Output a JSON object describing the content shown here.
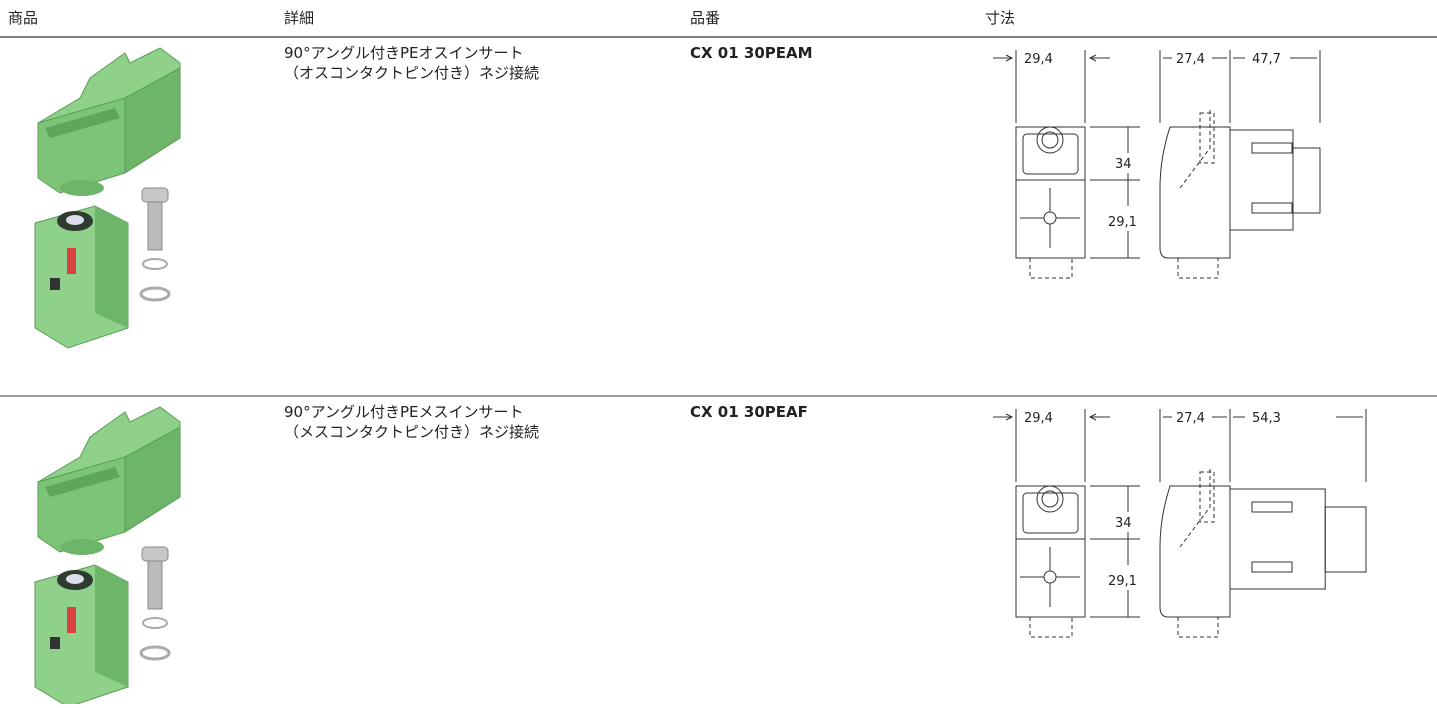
{
  "table": {
    "columns": [
      "商品",
      "詳細",
      "品番",
      "寸法"
    ],
    "rows": [
      {
        "detail": [
          "90°アングル付きPEオスインサート",
          "（オスコンタクトピン付き）ネジ接続"
        ],
        "part_number": "CX 01 30PEAM",
        "dimensions": {
          "front_width": "29,4",
          "side_width": "27,4",
          "plug_length": "47,7",
          "upper_height": "34",
          "lower_height": "29,1"
        }
      },
      {
        "detail": [
          "90°アングル付きPEメスインサート",
          "（メスコンタクトピン付き）ネジ接続"
        ],
        "part_number": "CX 01 30PEAF",
        "dimensions": {
          "front_width": "29,4",
          "side_width": "27,4",
          "plug_length": "54,3",
          "upper_height": "34",
          "lower_height": "29,1"
        }
      }
    ]
  }
}
